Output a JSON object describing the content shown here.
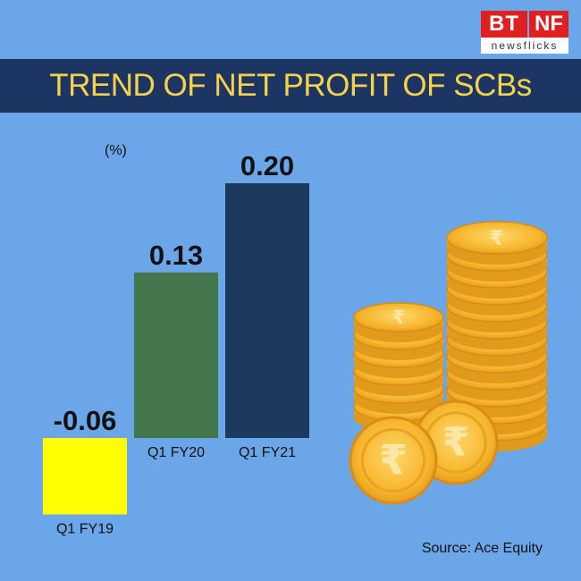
{
  "brand": {
    "left": "BT",
    "right": "NF",
    "tagline": "newsflicks"
  },
  "banner": {
    "title": "TREND OF NET PROFIT OF SCBs"
  },
  "unit_label": "(%)",
  "source": "Source: Ace Equity",
  "colors": {
    "background": "#6aa6e8",
    "banner": "#1d3563",
    "title": "#f6d24a"
  },
  "icons": [
    "rupee-coin-icon"
  ],
  "chart_data": {
    "type": "bar",
    "title": "TREND OF NET PROFIT OF SCBs",
    "ylabel": "(%)",
    "categories": [
      "Q1 FY19",
      "Q1 FY20",
      "Q1 FY21"
    ],
    "values": [
      -0.06,
      0.13,
      0.2
    ],
    "value_labels": [
      "-0.06",
      "0.13",
      "0.20"
    ],
    "bar_colors": [
      "#ffff00",
      "#45774f",
      "#1c3a5e"
    ],
    "ylim": [
      -0.06,
      0.2
    ],
    "grid": false,
    "legend": "none"
  }
}
